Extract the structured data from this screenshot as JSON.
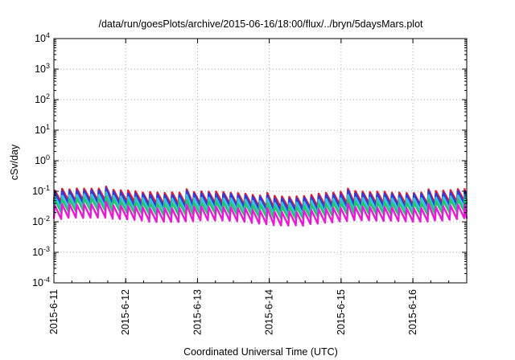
{
  "chart_data": {
    "type": "line",
    "title": "/data/run/goesPlots/archive/2015-06-16/18:00/flux/../bryn/5daysMars.plot",
    "xlabel": "Coordinated Universal Time (UTC)",
    "ylabel": "cSv/day",
    "yscale": "log",
    "ylim": [
      0.0001,
      10000
    ],
    "y_ticks": [
      {
        "base": "10",
        "exp": "-4",
        "value": 0.0001
      },
      {
        "base": "10",
        "exp": "-3",
        "value": 0.001
      },
      {
        "base": "10",
        "exp": "-2",
        "value": 0.01
      },
      {
        "base": "10",
        "exp": "-1",
        "value": 0.1
      },
      {
        "base": "10",
        "exp": "0",
        "value": 1
      },
      {
        "base": "10",
        "exp": "1",
        "value": 10
      },
      {
        "base": "10",
        "exp": "2",
        "value": 100
      },
      {
        "base": "10",
        "exp": "3",
        "value": 1000
      },
      {
        "base": "10",
        "exp": "4",
        "value": 10000
      }
    ],
    "xlim": [
      "2015-06-11 00:00",
      "2015-06-16 18:00"
    ],
    "x_ticks": [
      "2015-6-11",
      "2015-6-12",
      "2015-6-13",
      "2015-6-14",
      "2015-6-15",
      "2015-6-16"
    ],
    "grid": true,
    "sawtooth_cycle_hours": 2.45,
    "series": [
      {
        "color": "#e8192c",
        "peak": 0.095,
        "trough": 0.04
      },
      {
        "color": "#2a3ee0",
        "peak": 0.082,
        "trough": 0.032
      },
      {
        "color": "#2fc4d6",
        "peak": 0.06,
        "trough": 0.023
      },
      {
        "color": "#28c46a",
        "peak": 0.044,
        "trough": 0.018
      },
      {
        "color": "#e81ad8",
        "peak": 0.03,
        "trough": 0.011
      }
    ]
  }
}
